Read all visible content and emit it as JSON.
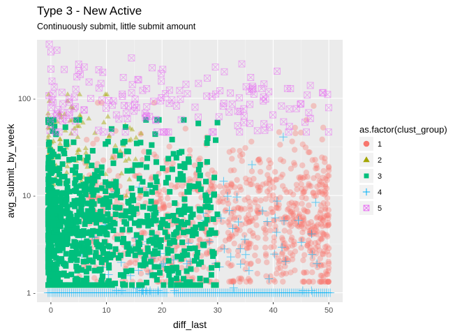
{
  "chart_data": {
    "type": "scatter",
    "title": "Type 3 - New Active",
    "subtitle": "Continuously submit, little submit amount",
    "xlabel": "diff_last",
    "ylabel": "avg_submit_by_week",
    "xlim": [
      -2.5,
      52.5
    ],
    "ylim": [
      0.8,
      400
    ],
    "y_scale": "log10",
    "x_ticks": [
      0,
      10,
      20,
      30,
      40,
      50
    ],
    "x_tick_labels": [
      "0",
      "10",
      "20",
      "30",
      "40",
      "50"
    ],
    "y_ticks": [
      1,
      10,
      100
    ],
    "y_tick_labels": [
      "1 -",
      "10 -",
      "100 -"
    ],
    "grid": true,
    "legend": {
      "title": "as.factor(clust_group)",
      "position": "right",
      "entries": [
        {
          "label": "1",
          "color": "#F8766D",
          "shape": "circle"
        },
        {
          "label": "2",
          "color": "#A3A500",
          "shape": "triangle"
        },
        {
          "label": "3",
          "color": "#00BF7D",
          "shape": "square"
        },
        {
          "label": "4",
          "color": "#00B0F6",
          "shape": "plus"
        },
        {
          "label": "5",
          "color": "#E76BF3",
          "shape": "square-x"
        }
      ]
    },
    "series": [
      {
        "name": "1",
        "generator": {
          "seed": 11,
          "count": 900,
          "x_range": [
            5,
            50
          ],
          "x_skew": 1.0,
          "y_range": [
            1.3,
            90
          ],
          "y_center": 5.5,
          "y_spread": 0.42,
          "x_weight_toward_high": 0.35
        },
        "extra_points": [
          {
            "x": 48,
            "y": 2
          },
          {
            "x": 50,
            "y": 2
          },
          {
            "x": 46,
            "y": 60
          },
          {
            "x": 49,
            "y": 50
          },
          {
            "x": 41,
            "y": 2
          },
          {
            "x": 36,
            "y": 2
          },
          {
            "x": 30,
            "y": 2
          },
          {
            "x": 25,
            "y": 2
          },
          {
            "x": 20,
            "y": 2
          }
        ]
      },
      {
        "name": "2",
        "generator": {
          "seed": 22,
          "count": 120,
          "x_range": [
            -0.5,
            17
          ],
          "x_skew": 2.2,
          "y_range": [
            10,
            110
          ],
          "y_center": 28,
          "y_spread": 0.28
        }
      },
      {
        "name": "3",
        "generator": {
          "seed": 33,
          "count": 900,
          "x_range": [
            -0.5,
            30
          ],
          "x_skew": 2.0,
          "y_range": [
            1.2,
            60
          ],
          "y_center": 5.0,
          "y_spread": 0.45
        }
      },
      {
        "name": "4",
        "baseline_points": {
          "y": 1,
          "x_from": -0.5,
          "x_to": 50.5,
          "step": 0.35,
          "gaps": [
            [
              21.2,
              22.2
            ],
            [
              46.5,
              47
            ]
          ]
        },
        "generator": {
          "seed": 44,
          "count": 90,
          "x_range": [
            5,
            48
          ],
          "x_skew": 1.0,
          "y_range": [
            1.05,
            40
          ],
          "y_center": 3.2,
          "y_spread": 0.38
        }
      },
      {
        "name": "5",
        "generator": {
          "seed": 55,
          "count": 170,
          "x_range": [
            -0.5,
            50
          ],
          "x_skew": 1.2,
          "y_range": [
            45,
            380
          ],
          "y_center": 90,
          "y_spread": 0.22
        },
        "extra_points": [
          {
            "x": -0.3,
            "y": 360
          },
          {
            "x": 0,
            "y": 300
          },
          {
            "x": 0,
            "y": 200
          },
          {
            "x": 0.2,
            "y": 150
          },
          {
            "x": 14.5,
            "y": 260
          },
          {
            "x": 5,
            "y": 225
          },
          {
            "x": 6,
            "y": 210
          }
        ]
      }
    ]
  }
}
